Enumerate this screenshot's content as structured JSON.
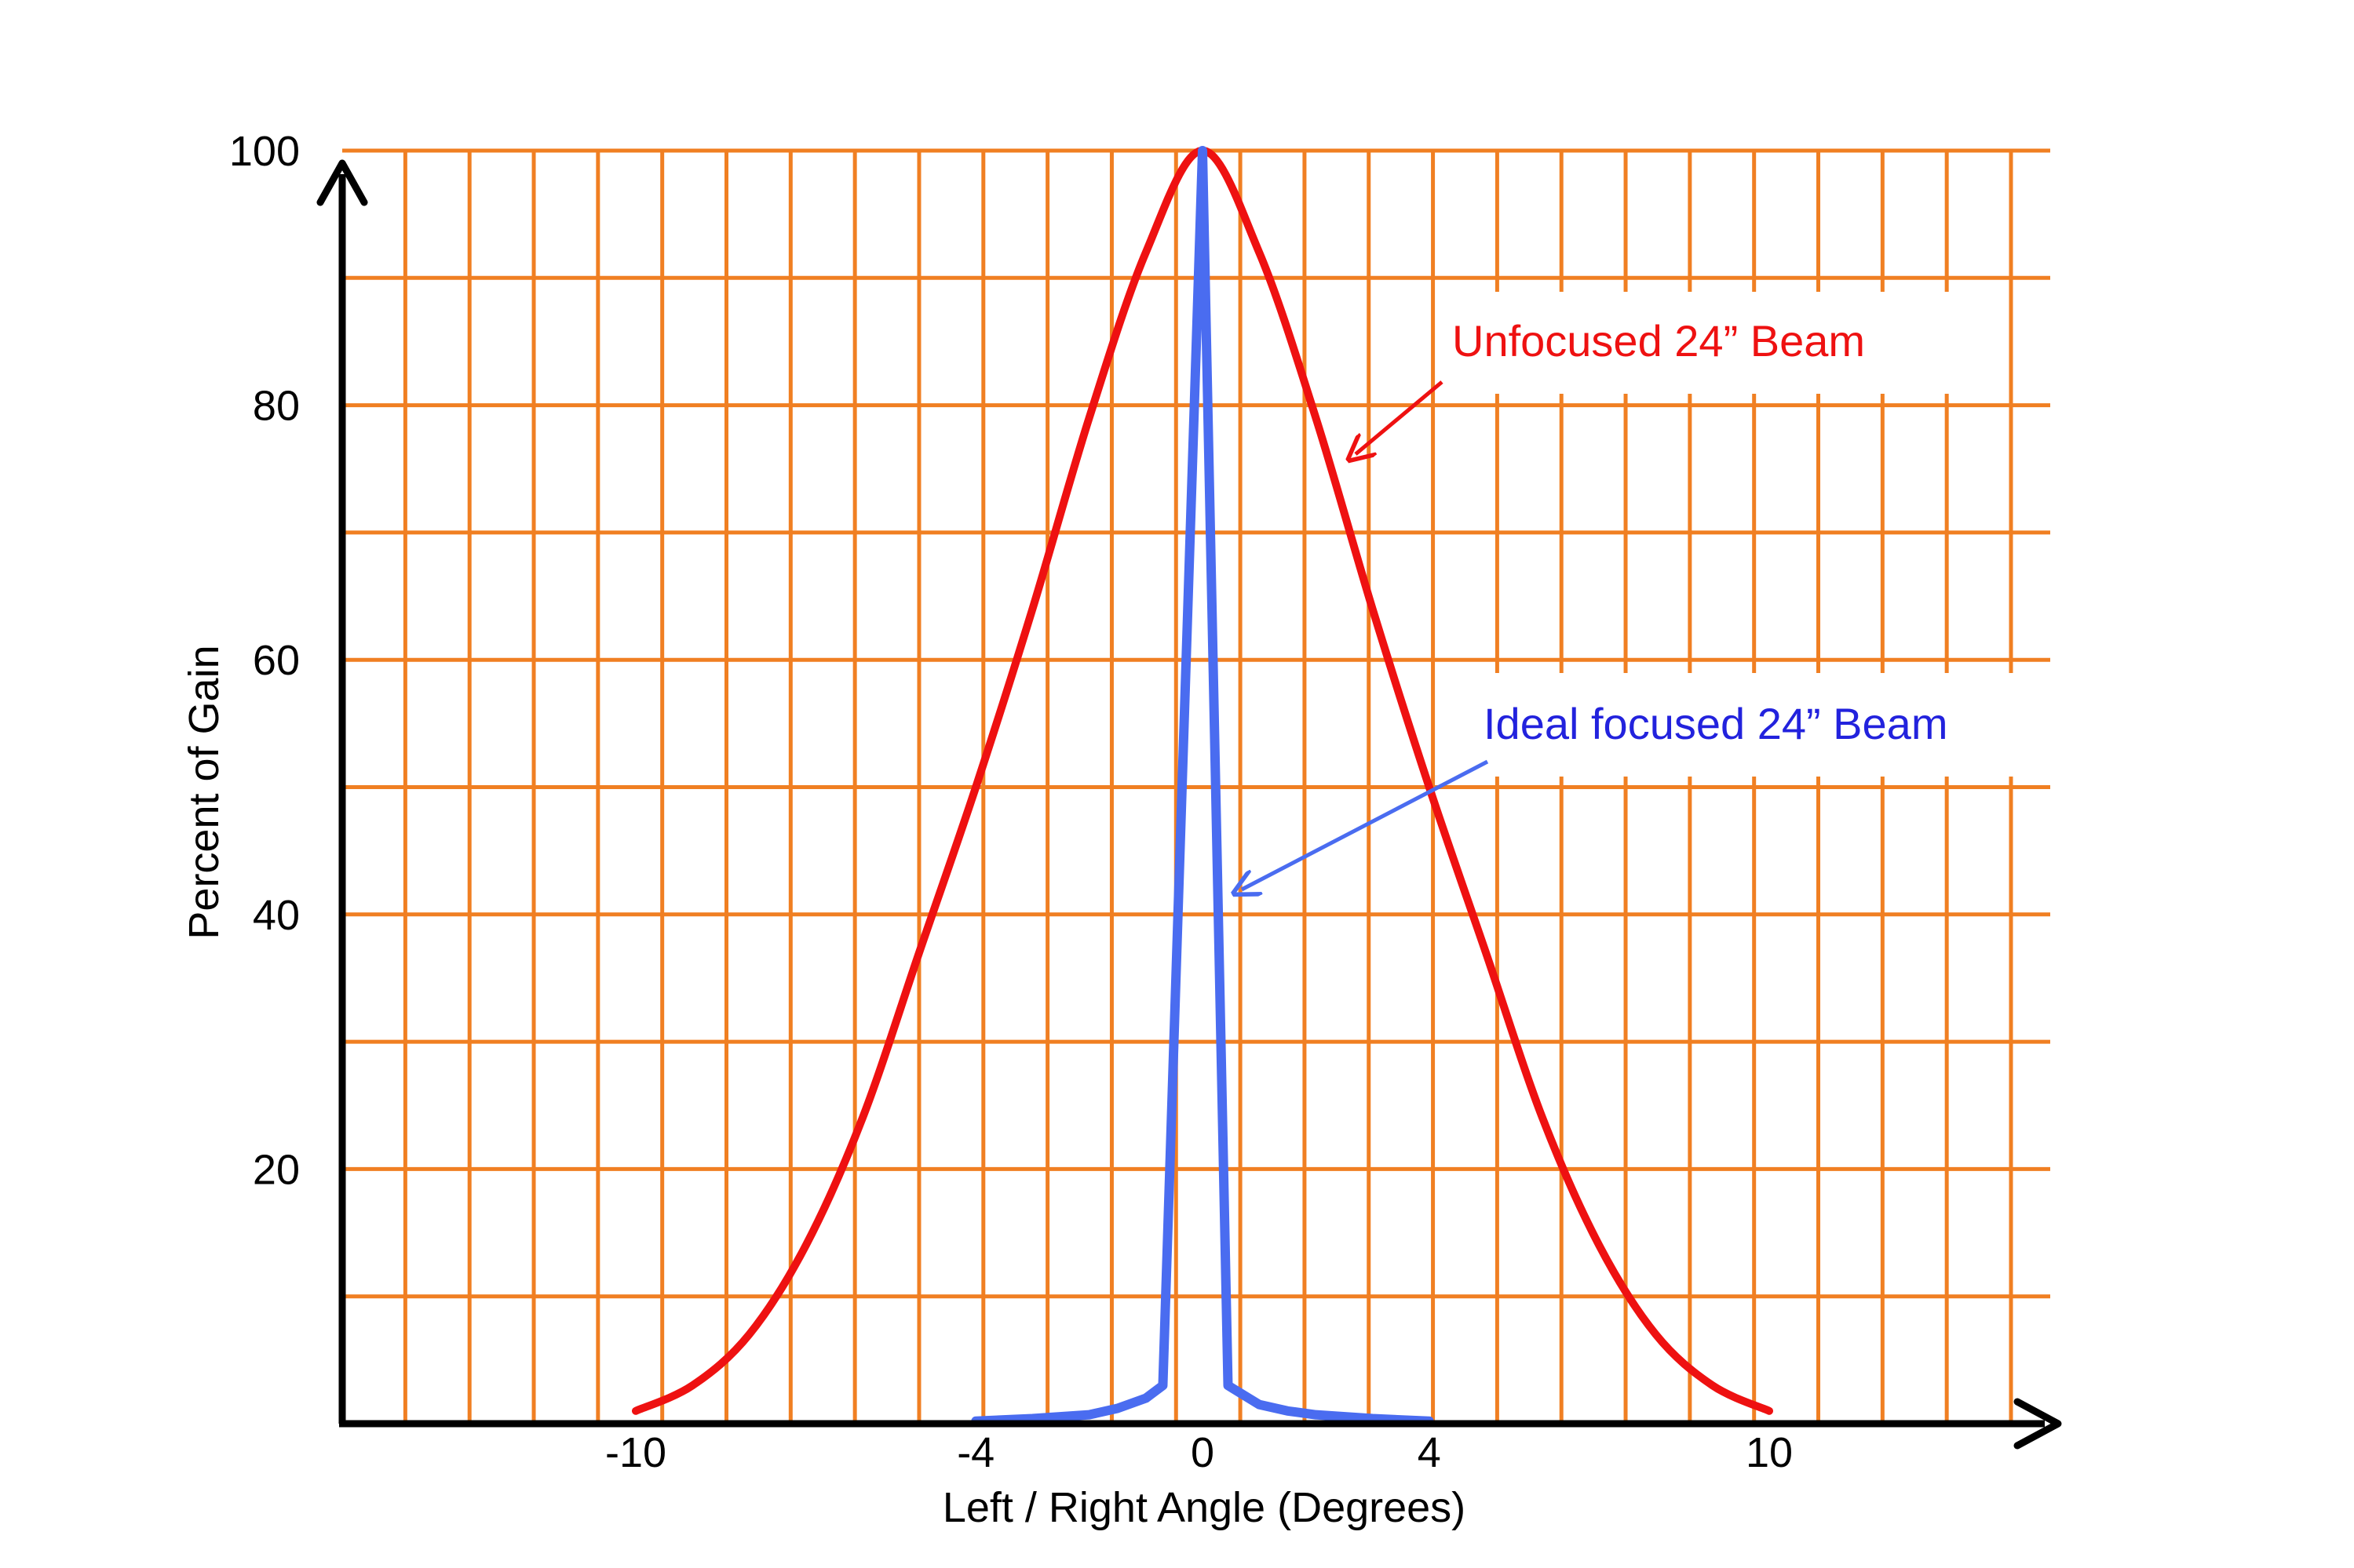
{
  "chart_data": {
    "type": "line",
    "title": "",
    "xlabel": "Left / Right Angle (Degrees)",
    "ylabel": "Percent of Gain",
    "xlim": [
      -15.2,
      15.2
    ],
    "ylim": [
      0,
      100
    ],
    "x_ticks": [
      -10,
      -4,
      0,
      4,
      10
    ],
    "x_tick_labels": [
      "-10",
      "-4",
      "0",
      "4",
      "10"
    ],
    "y_ticks": [
      20,
      40,
      60,
      80,
      100
    ],
    "y_tick_labels": [
      "20",
      "40",
      "60",
      "80",
      "100"
    ],
    "grid": true,
    "grid_color": "#f07f22",
    "axis_color": "#000000",
    "x_grid_step": 1.1333,
    "y_grid_step": 10,
    "series": [
      {
        "name": "Unfocused 24” Beam",
        "color": "#ee1111",
        "x": [
          -10,
          -9,
          -8,
          -7,
          -6,
          -5,
          -4,
          -3,
          -2,
          -1,
          0,
          1,
          2,
          3,
          4,
          5,
          6,
          7,
          8,
          9,
          10
        ],
        "y": [
          1,
          3,
          7,
          14,
          24,
          37,
          50,
          64,
          79,
          92,
          100,
          92,
          79,
          64,
          50,
          37,
          24,
          14,
          7,
          3,
          1
        ]
      },
      {
        "name": "Ideal focused 24” Beam",
        "color": "#4a6cf0",
        "x": [
          -4,
          -3,
          -2,
          -1.5,
          -1,
          -0.7,
          0,
          0.45,
          1,
          1.5,
          2,
          3,
          4
        ],
        "y": [
          0.2,
          0.4,
          0.7,
          1.2,
          2,
          3,
          100,
          3,
          1.5,
          1,
          0.7,
          0.4,
          0.2
        ]
      }
    ],
    "annotations": [
      {
        "text": "Unfocused 24” Beam",
        "color": "#ee1111",
        "points_to_series": "Unfocused 24” Beam",
        "arrow_x": 2.7,
        "arrow_y": 76
      },
      {
        "text": "Ideal focused 24” Beam",
        "color": "#2222dd",
        "points_to_series": "Ideal focused 24” Beam",
        "arrow_x": 0.6,
        "arrow_y": 42
      }
    ]
  }
}
